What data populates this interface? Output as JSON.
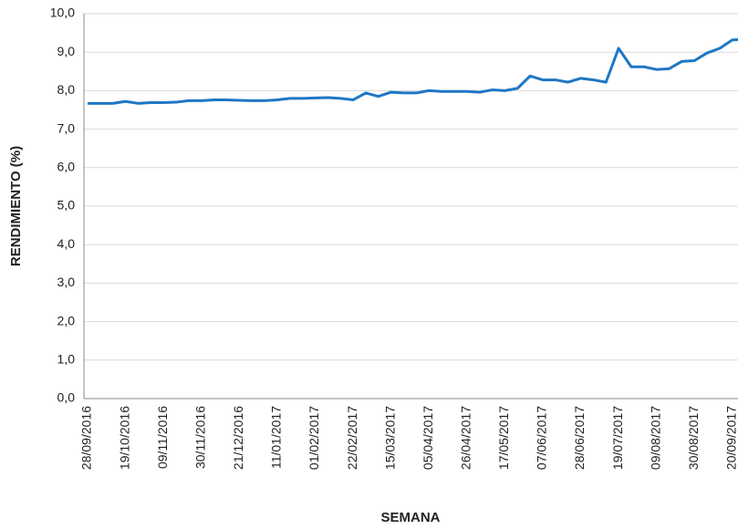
{
  "chart_data": {
    "type": "line",
    "x_label": "SEMANA",
    "y_label": "RENDIMIENTO (%)",
    "categories": [
      "28/09/2016",
      null,
      null,
      "19/10/2016",
      null,
      null,
      "09/11/2016",
      null,
      null,
      "30/11/2016",
      null,
      null,
      "21/12/2016",
      null,
      null,
      "11/01/2017",
      null,
      null,
      "01/02/2017",
      null,
      null,
      "22/02/2017",
      null,
      null,
      "15/03/2017",
      null,
      null,
      "05/04/2017",
      null,
      null,
      "26/04/2017",
      null,
      null,
      "17/05/2017",
      null,
      null,
      "07/06/2017",
      null,
      null,
      "28/06/2017",
      null,
      null,
      "19/07/2017",
      null,
      null,
      "09/08/2017",
      null,
      null,
      "30/08/2017",
      null,
      null,
      "20/09/2017",
      null
    ],
    "series": [
      {
        "name": "RENDIMIENTO (%)",
        "color": "#1f77c4",
        "values": [
          7.67,
          7.67,
          7.67,
          7.72,
          7.67,
          7.69,
          7.69,
          7.7,
          7.74,
          7.74,
          7.76,
          7.76,
          7.75,
          7.74,
          7.74,
          7.76,
          7.8,
          7.8,
          7.81,
          7.82,
          7.8,
          7.76,
          7.94,
          7.85,
          7.96,
          7.94,
          7.94,
          8.0,
          7.98,
          7.98,
          7.98,
          7.96,
          8.02,
          8.0,
          8.06,
          8.38,
          8.28,
          8.28,
          8.22,
          8.32,
          8.28,
          8.22,
          9.1,
          8.62,
          8.62,
          8.55,
          8.57,
          8.76,
          8.78,
          8.98,
          9.1,
          9.32,
          9.33
        ]
      }
    ],
    "ylim": [
      0,
      10
    ],
    "yticks": [
      {
        "value": 0,
        "label": "0,0"
      },
      {
        "value": 1,
        "label": "1,0"
      },
      {
        "value": 2,
        "label": "2,0"
      },
      {
        "value": 3,
        "label": "3,0"
      },
      {
        "value": 4,
        "label": "4,0"
      },
      {
        "value": 5,
        "label": "5,0"
      },
      {
        "value": 6,
        "label": "6,0"
      },
      {
        "value": 7,
        "label": "7,0"
      },
      {
        "value": 8,
        "label": "8,0"
      },
      {
        "value": 9,
        "label": "9,0"
      },
      {
        "value": 10,
        "label": "10,0"
      }
    ],
    "grid": true
  }
}
